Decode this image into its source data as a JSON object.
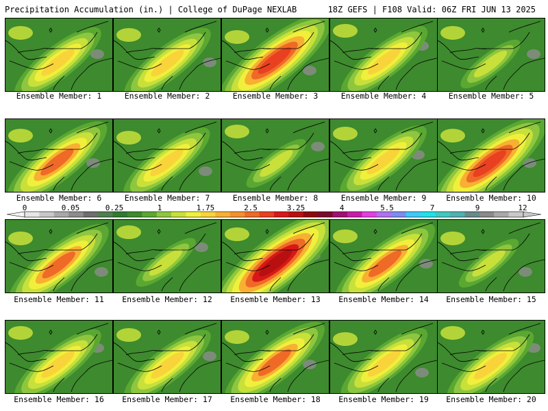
{
  "header": {
    "left_title": "Precipitation Accumulation (in.) | College of DuPage NEXLAB",
    "right_title": "18Z GEFS | F108 Valid: 06Z FRI JUN 13 2025"
  },
  "colors": {
    "background": "#ffffff",
    "panel_base": "#3e8a2e",
    "map_lines": "#000000",
    "colorbar_bins": [
      "#e6e6e6",
      "#c8c8c8",
      "#a8a8a8",
      "#8c8c8c",
      "#6e6e6e",
      "#4f7f4f",
      "#2f7a2f",
      "#3e8a2e",
      "#5aa832",
      "#8ec63f",
      "#c8e03a",
      "#f0f03c",
      "#f8d43a",
      "#f8b032",
      "#f4902c",
      "#ee6a26",
      "#e84020",
      "#d81818",
      "#b81010",
      "#8e0a0a",
      "#7a0a2a",
      "#a01070",
      "#c81ca8",
      "#e040e0",
      "#b070f0",
      "#7c8cf0",
      "#40c8f8",
      "#20e0e8",
      "#40c8c0",
      "#50b0b0",
      "#6a8a8a",
      "#8a8a8a",
      "#a8a8a8",
      "#c8c8c8"
    ]
  },
  "colorbar": {
    "tick_labels": [
      "0",
      "0.05",
      "0.25",
      "1",
      "1.75",
      "2.5",
      "3.25",
      "4",
      "5.5",
      "7",
      "9",
      "12"
    ]
  },
  "panels": [
    {
      "label": "Ensemble Member: 1",
      "intensity": 1
    },
    {
      "label": "Ensemble Member: 2",
      "intensity": 1
    },
    {
      "label": "Ensemble Member: 3",
      "intensity": 3
    },
    {
      "label": "Ensemble Member: 4",
      "intensity": 1
    },
    {
      "label": "Ensemble Member: 5",
      "intensity": 0
    },
    {
      "label": "Ensemble Member: 6",
      "intensity": 2
    },
    {
      "label": "Ensemble Member: 7",
      "intensity": 1
    },
    {
      "label": "Ensemble Member: 8",
      "intensity": 0
    },
    {
      "label": "Ensemble Member: 9",
      "intensity": 1
    },
    {
      "label": "Ensemble Member: 10",
      "intensity": 3
    },
    {
      "label": "Ensemble Member: 11",
      "intensity": 2
    },
    {
      "label": "Ensemble Member: 12",
      "intensity": 0
    },
    {
      "label": "Ensemble Member: 13",
      "intensity": 4
    },
    {
      "label": "Ensemble Member: 14",
      "intensity": 2
    },
    {
      "label": "Ensemble Member: 15",
      "intensity": 0
    },
    {
      "label": "Ensemble Member: 16",
      "intensity": 1
    },
    {
      "label": "Ensemble Member: 17",
      "intensity": 1
    },
    {
      "label": "Ensemble Member: 18",
      "intensity": 2
    },
    {
      "label": "Ensemble Member: 19",
      "intensity": 1
    },
    {
      "label": "Ensemble Member: 20",
      "intensity": 1
    }
  ]
}
